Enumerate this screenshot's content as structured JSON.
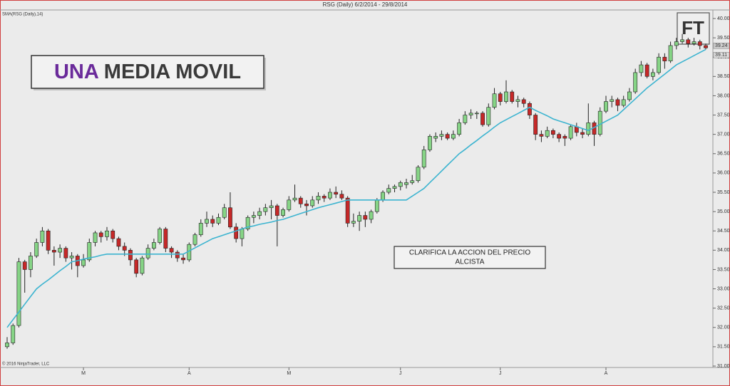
{
  "chart_data": {
    "type": "candlestick",
    "title": "RSG (Daily)  6/2/2014 - 29/8/2014",
    "copyright": "© 2016 NinjaTrader, LLC",
    "headline": [
      "UNA",
      "MEDIA MOVIL"
    ],
    "headline_colors": [
      "#6a2a9a",
      "#3a3a3a"
    ],
    "note": [
      "CLARIFICA LA ACCION DEL PRECIO",
      "ALCISTA"
    ],
    "logo": "FT",
    "up_color": "#86d486",
    "down_color": "#c62828",
    "ylim": [
      31,
      40
    ],
    "yticks": [
      {
        "value": 31,
        "label": "31.00"
      },
      {
        "value": 31.5,
        "label": "31.50"
      },
      {
        "value": 32,
        "label": "32.00"
      },
      {
        "value": 32.5,
        "label": "32.50"
      },
      {
        "value": 33,
        "label": "33.00"
      },
      {
        "value": 33.5,
        "label": "33.50"
      },
      {
        "value": 34,
        "label": "34.00"
      },
      {
        "value": 34.5,
        "label": "34.50"
      },
      {
        "value": 35,
        "label": "35.00"
      },
      {
        "value": 35.5,
        "label": "35.50"
      },
      {
        "value": 36,
        "label": "36.00"
      },
      {
        "value": 36.5,
        "label": "36.50"
      },
      {
        "value": 37,
        "label": "37.00"
      },
      {
        "value": 37.5,
        "label": "37.50"
      },
      {
        "value": 38,
        "label": "38.00"
      },
      {
        "value": 38.5,
        "label": "38.50"
      },
      {
        "value": 39,
        "label": "39.00"
      },
      {
        "value": 39.5,
        "label": "39.50"
      },
      {
        "value": 40,
        "label": "40.00"
      }
    ],
    "xticks": [
      {
        "value": 13,
        "label": "M"
      },
      {
        "value": 31,
        "label": "A"
      },
      {
        "value": 48,
        "label": "M"
      },
      {
        "value": 67,
        "label": "J"
      },
      {
        "value": 84,
        "label": "J"
      },
      {
        "value": 102,
        "label": "A"
      }
    ],
    "price_labels": [
      39.24,
      39.11
    ],
    "grid": false,
    "ohlc": [
      [
        31.5,
        31.75,
        31.45,
        31.6
      ],
      [
        31.6,
        32.1,
        31.55,
        32.05
      ],
      [
        32.05,
        33.8,
        32.0,
        33.7
      ],
      [
        33.7,
        33.75,
        32.9,
        33.5
      ],
      [
        33.5,
        33.95,
        33.3,
        33.85
      ],
      [
        33.85,
        34.3,
        33.8,
        34.2
      ],
      [
        34.2,
        34.6,
        34.1,
        34.5
      ],
      [
        34.5,
        34.55,
        33.9,
        34.0
      ],
      [
        34.0,
        34.1,
        33.6,
        33.95
      ],
      [
        33.95,
        34.15,
        33.8,
        34.05
      ],
      [
        34.05,
        34.1,
        33.7,
        33.8
      ],
      [
        33.8,
        33.95,
        33.5,
        33.85
      ],
      [
        33.85,
        33.9,
        33.3,
        33.6
      ],
      [
        33.6,
        33.9,
        33.55,
        33.75
      ],
      [
        33.75,
        34.3,
        33.7,
        34.2
      ],
      [
        34.2,
        34.5,
        34.1,
        34.45
      ],
      [
        34.45,
        34.5,
        34.2,
        34.35
      ],
      [
        34.35,
        34.6,
        34.25,
        34.5
      ],
      [
        34.5,
        34.55,
        34.2,
        34.3
      ],
      [
        34.3,
        34.35,
        34.0,
        34.1
      ],
      [
        34.1,
        34.2,
        33.85,
        34.0
      ],
      [
        34.0,
        34.05,
        33.6,
        33.75
      ],
      [
        33.75,
        33.8,
        33.3,
        33.4
      ],
      [
        33.4,
        33.85,
        33.35,
        33.8
      ],
      [
        33.8,
        34.15,
        33.75,
        34.05
      ],
      [
        34.05,
        34.3,
        34.0,
        34.2
      ],
      [
        34.2,
        34.6,
        34.15,
        34.55
      ],
      [
        34.55,
        34.6,
        33.95,
        34.05
      ],
      [
        34.05,
        34.1,
        33.8,
        33.95
      ],
      [
        33.95,
        34.0,
        33.7,
        33.8
      ],
      [
        33.8,
        33.9,
        33.65,
        33.75
      ],
      [
        33.75,
        34.2,
        33.7,
        34.15
      ],
      [
        34.15,
        34.45,
        34.1,
        34.4
      ],
      [
        34.4,
        34.8,
        34.35,
        34.7
      ],
      [
        34.7,
        35.0,
        34.6,
        34.8
      ],
      [
        34.8,
        34.9,
        34.6,
        34.7
      ],
      [
        34.7,
        34.95,
        34.65,
        34.85
      ],
      [
        34.85,
        35.2,
        34.8,
        35.1
      ],
      [
        35.1,
        35.5,
        34.55,
        34.6
      ],
      [
        34.6,
        34.7,
        34.2,
        34.3
      ],
      [
        34.3,
        34.6,
        34.1,
        34.55
      ],
      [
        34.55,
        34.9,
        34.5,
        34.85
      ],
      [
        34.85,
        35.0,
        34.7,
        34.9
      ],
      [
        34.9,
        35.1,
        34.8,
        35.0
      ],
      [
        35.0,
        35.2,
        34.9,
        35.1
      ],
      [
        35.1,
        35.3,
        34.8,
        35.15
      ],
      [
        35.15,
        35.2,
        34.1,
        34.9
      ],
      [
        34.9,
        35.1,
        34.85,
        35.05
      ],
      [
        35.05,
        35.4,
        35.0,
        35.3
      ],
      [
        35.3,
        35.7,
        35.25,
        35.35
      ],
      [
        35.35,
        35.4,
        35.1,
        35.2
      ],
      [
        35.2,
        35.3,
        34.9,
        35.15
      ],
      [
        35.15,
        35.4,
        35.1,
        35.3
      ],
      [
        35.3,
        35.5,
        35.2,
        35.4
      ],
      [
        35.4,
        35.45,
        35.25,
        35.35
      ],
      [
        35.35,
        35.6,
        35.3,
        35.5
      ],
      [
        35.5,
        35.65,
        35.35,
        35.45
      ],
      [
        35.45,
        35.55,
        35.3,
        35.35
      ],
      [
        35.35,
        35.4,
        34.6,
        34.7
      ],
      [
        34.7,
        34.95,
        34.6,
        34.75
      ],
      [
        34.75,
        35.0,
        34.5,
        34.9
      ],
      [
        34.9,
        35.0,
        34.6,
        34.8
      ],
      [
        34.8,
        35.05,
        34.7,
        35.0
      ],
      [
        35.0,
        35.35,
        34.95,
        35.3
      ],
      [
        35.3,
        35.55,
        35.25,
        35.5
      ],
      [
        35.5,
        35.7,
        35.45,
        35.6
      ],
      [
        35.6,
        35.7,
        35.5,
        35.65
      ],
      [
        35.65,
        35.8,
        35.55,
        35.75
      ],
      [
        35.7,
        35.85,
        35.6,
        35.75
      ],
      [
        35.75,
        35.95,
        35.7,
        35.8
      ],
      [
        35.8,
        36.2,
        35.75,
        36.15
      ],
      [
        36.15,
        36.7,
        36.1,
        36.6
      ],
      [
        36.6,
        37.0,
        36.55,
        36.95
      ],
      [
        36.9,
        37.05,
        36.8,
        36.95
      ],
      [
        36.95,
        37.1,
        36.85,
        37.0
      ],
      [
        37.0,
        37.05,
        36.85,
        36.9
      ],
      [
        36.9,
        37.1,
        36.85,
        37.0
      ],
      [
        37.0,
        37.4,
        36.95,
        37.3
      ],
      [
        37.3,
        37.6,
        37.25,
        37.5
      ],
      [
        37.5,
        37.65,
        37.4,
        37.55
      ],
      [
        37.55,
        37.6,
        37.4,
        37.55
      ],
      [
        37.55,
        37.6,
        37.2,
        37.25
      ],
      [
        37.25,
        37.8,
        37.2,
        37.7
      ],
      [
        37.7,
        38.2,
        37.65,
        38.05
      ],
      [
        38.05,
        38.1,
        37.75,
        37.85
      ],
      [
        37.85,
        38.4,
        37.8,
        38.1
      ],
      [
        38.1,
        38.15,
        37.8,
        37.85
      ],
      [
        37.85,
        38.0,
        37.7,
        37.9
      ],
      [
        37.9,
        37.95,
        37.7,
        37.8
      ],
      [
        37.8,
        37.85,
        37.4,
        37.5
      ],
      [
        37.5,
        37.55,
        36.85,
        37.0
      ],
      [
        37.0,
        37.1,
        36.8,
        36.95
      ],
      [
        36.95,
        37.2,
        36.9,
        37.1
      ],
      [
        37.1,
        37.15,
        36.9,
        37.0
      ],
      [
        37.0,
        37.05,
        36.8,
        36.9
      ],
      [
        36.95,
        37.0,
        36.7,
        36.9
      ],
      [
        36.9,
        37.25,
        36.85,
        37.2
      ],
      [
        37.2,
        37.3,
        36.95,
        37.05
      ],
      [
        37.05,
        37.15,
        36.9,
        37.0
      ],
      [
        37.0,
        37.8,
        36.95,
        37.3
      ],
      [
        37.3,
        37.35,
        36.7,
        37.0
      ],
      [
        37.0,
        37.7,
        36.95,
        37.6
      ],
      [
        37.6,
        38.0,
        37.55,
        37.85
      ],
      [
        37.85,
        38.0,
        37.7,
        37.9
      ],
      [
        37.9,
        37.95,
        37.6,
        37.75
      ],
      [
        37.75,
        38.0,
        37.7,
        37.9
      ],
      [
        37.9,
        38.2,
        37.85,
        38.1
      ],
      [
        38.1,
        38.7,
        38.05,
        38.6
      ],
      [
        38.6,
        38.9,
        38.5,
        38.8
      ],
      [
        38.8,
        38.85,
        38.45,
        38.5
      ],
      [
        38.5,
        38.7,
        38.4,
        38.6
      ],
      [
        38.6,
        39.1,
        38.55,
        39.0
      ],
      [
        39.0,
        39.1,
        38.7,
        38.9
      ],
      [
        38.9,
        39.4,
        38.85,
        39.3
      ],
      [
        39.3,
        39.5,
        39.2,
        39.4
      ],
      [
        39.4,
        39.6,
        39.35,
        39.45
      ],
      [
        39.45,
        39.5,
        39.25,
        39.35
      ],
      [
        39.35,
        39.5,
        39.3,
        39.4
      ],
      [
        39.4,
        39.45,
        39.2,
        39.3
      ],
      [
        39.3,
        39.35,
        39.2,
        39.24
      ]
    ],
    "sma": {
      "name": "SMA(RSG (Daily),14)",
      "color": "#3cb4d0",
      "values": [
        32.0,
        32.2,
        32.4,
        32.6,
        32.8,
        33.0,
        33.12,
        33.23,
        33.35,
        33.47,
        33.58,
        33.7,
        33.73,
        33.77,
        33.8,
        33.83,
        33.87,
        33.9,
        33.9,
        33.9,
        33.9,
        33.9,
        33.9,
        33.9,
        33.9,
        33.9,
        33.9,
        33.9,
        33.9,
        33.9,
        33.9,
        33.98,
        34.06,
        34.14,
        34.22,
        34.3,
        34.35,
        34.4,
        34.45,
        34.5,
        34.55,
        34.6,
        34.63,
        34.67,
        34.7,
        34.73,
        34.77,
        34.8,
        34.85,
        34.9,
        34.95,
        35.0,
        35.05,
        35.1,
        35.14,
        35.18,
        35.22,
        35.26,
        35.3,
        35.3,
        35.3,
        35.3,
        35.3,
        35.3,
        35.3,
        35.3,
        35.3,
        35.3,
        35.3,
        35.4,
        35.5,
        35.6,
        35.75,
        35.9,
        36.05,
        36.2,
        36.35,
        36.5,
        36.61,
        36.73,
        36.84,
        36.96,
        37.07,
        37.19,
        37.3,
        37.38,
        37.46,
        37.54,
        37.62,
        37.7,
        37.62,
        37.55,
        37.48,
        37.4,
        37.35,
        37.3,
        37.25,
        37.2,
        37.15,
        37.1,
        37.18,
        37.26,
        37.34,
        37.42,
        37.5,
        37.64,
        37.78,
        37.92,
        38.06,
        38.2,
        38.32,
        38.44,
        38.56,
        38.68,
        38.8,
        38.88,
        38.96,
        39.04,
        39.12,
        39.2
      ]
    }
  }
}
